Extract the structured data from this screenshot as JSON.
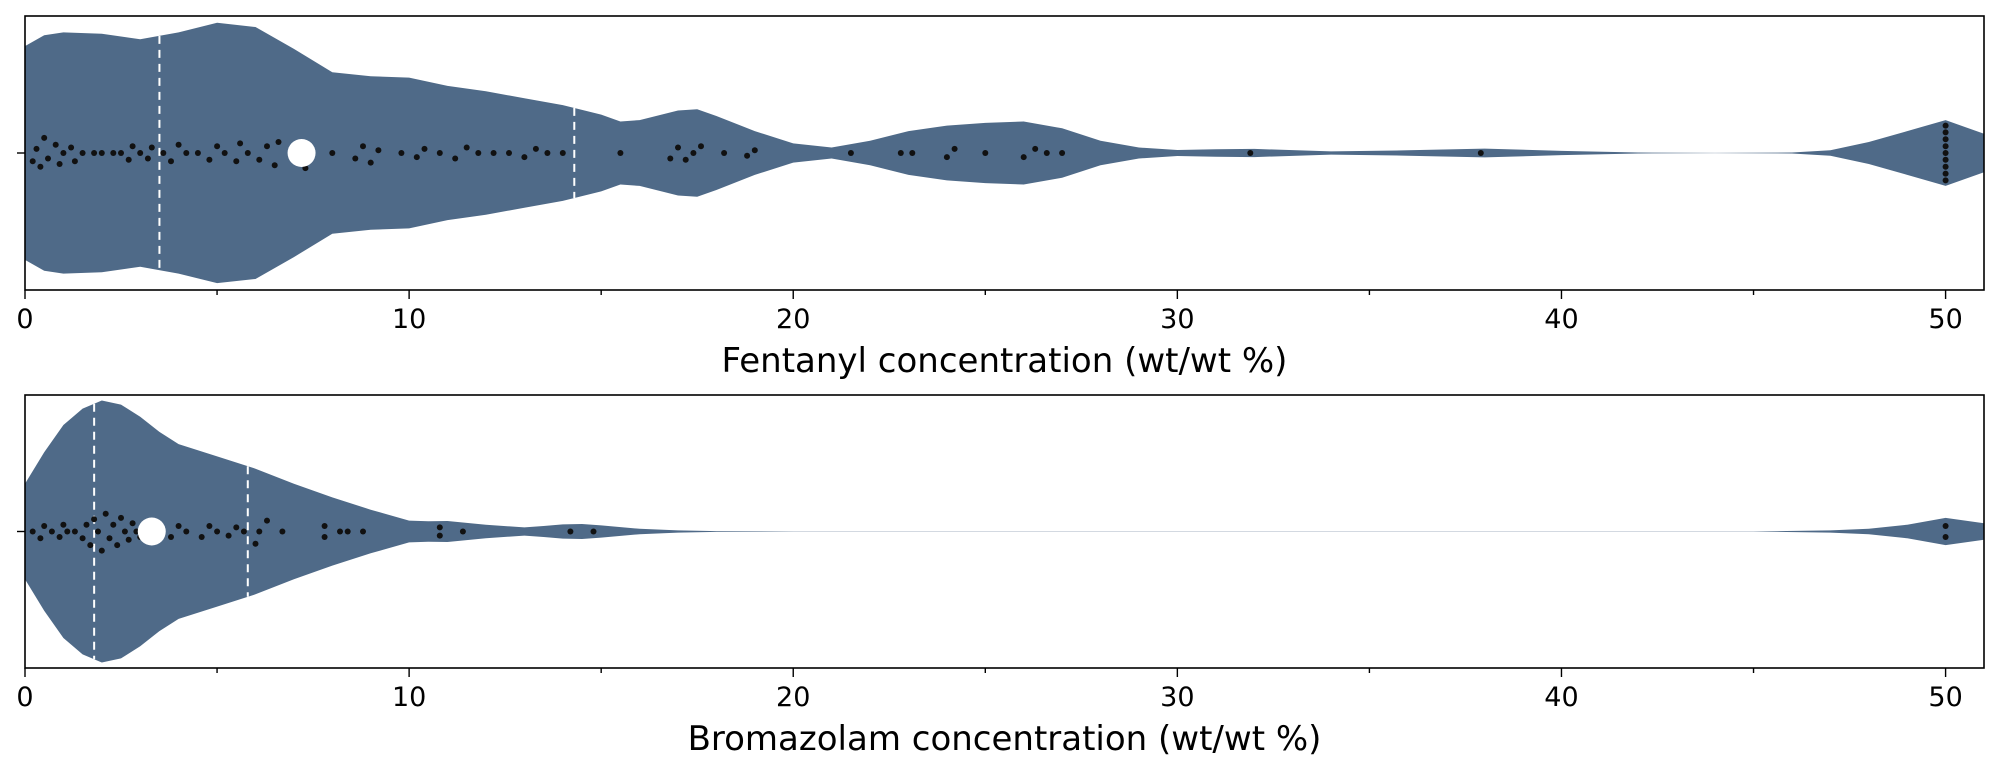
{
  "chart_data": [
    {
      "type": "violin",
      "xlabel": "Fentanyl concentration (wt/wt %)",
      "xlim": [
        0,
        51
      ],
      "xticks": [
        0,
        10,
        20,
        30,
        40,
        50
      ],
      "minor_ticks": [
        5,
        15,
        25,
        35,
        45
      ],
      "color": "#4f6a88",
      "quartiles": [
        3.5,
        14.3
      ],
      "median": 7.2,
      "density": [
        [
          0,
          0.78
        ],
        [
          0.5,
          0.86
        ],
        [
          1,
          0.88
        ],
        [
          2,
          0.87
        ],
        [
          3,
          0.83
        ],
        [
          4,
          0.88
        ],
        [
          5,
          0.95
        ],
        [
          6,
          0.92
        ],
        [
          7,
          0.76
        ],
        [
          8,
          0.59
        ],
        [
          9,
          0.56
        ],
        [
          10,
          0.55
        ],
        [
          11,
          0.49
        ],
        [
          12,
          0.45
        ],
        [
          13,
          0.4
        ],
        [
          14,
          0.35
        ],
        [
          15,
          0.28
        ],
        [
          15.5,
          0.23
        ],
        [
          16,
          0.24
        ],
        [
          17,
          0.31
        ],
        [
          17.5,
          0.32
        ],
        [
          18,
          0.27
        ],
        [
          19,
          0.16
        ],
        [
          20,
          0.07
        ],
        [
          21,
          0.04
        ],
        [
          22,
          0.09
        ],
        [
          23,
          0.16
        ],
        [
          24,
          0.2
        ],
        [
          25,
          0.22
        ],
        [
          26,
          0.23
        ],
        [
          27,
          0.18
        ],
        [
          28,
          0.09
        ],
        [
          29,
          0.04
        ],
        [
          30,
          0.022
        ],
        [
          31,
          0.028
        ],
        [
          32,
          0.03
        ],
        [
          34,
          0.012
        ],
        [
          36,
          0.02
        ],
        [
          38,
          0.032
        ],
        [
          40,
          0.015
        ],
        [
          42,
          0.004
        ],
        [
          44,
          0.001
        ],
        [
          46,
          0.004
        ],
        [
          47,
          0.02
        ],
        [
          48,
          0.08
        ],
        [
          49,
          0.16
        ],
        [
          50,
          0.24
        ],
        [
          51,
          0.14
        ]
      ],
      "points": [
        [
          0.2,
          0.06
        ],
        [
          0.3,
          -0.03
        ],
        [
          0.4,
          0.1
        ],
        [
          0.5,
          -0.11
        ],
        [
          0.6,
          0.04
        ],
        [
          0.8,
          -0.06
        ],
        [
          0.9,
          0.08
        ],
        [
          1.0,
          0.0
        ],
        [
          1.2,
          -0.04
        ],
        [
          1.3,
          0.06
        ],
        [
          1.5,
          0.0
        ],
        [
          1.8,
          0.0
        ],
        [
          2.0,
          0.0
        ],
        [
          2.3,
          0.0
        ],
        [
          2.5,
          0.0
        ],
        [
          2.7,
          0.05
        ],
        [
          2.8,
          -0.05
        ],
        [
          3.0,
          0.0
        ],
        [
          3.2,
          0.04
        ],
        [
          3.3,
          -0.04
        ],
        [
          3.6,
          0.0
        ],
        [
          3.8,
          0.06
        ],
        [
          4.0,
          -0.06
        ],
        [
          4.2,
          0.0
        ],
        [
          4.5,
          0.0
        ],
        [
          4.8,
          0.05
        ],
        [
          5.0,
          -0.05
        ],
        [
          5.2,
          0.0
        ],
        [
          5.5,
          0.06
        ],
        [
          5.6,
          -0.07
        ],
        [
          5.8,
          0.0
        ],
        [
          6.1,
          0.05
        ],
        [
          6.3,
          -0.05
        ],
        [
          6.5,
          0.09
        ],
        [
          6.6,
          -0.08
        ],
        [
          7.0,
          0.0
        ],
        [
          7.3,
          0.11
        ],
        [
          8.0,
          0.0
        ],
        [
          8.6,
          0.04
        ],
        [
          8.8,
          -0.05
        ],
        [
          9.0,
          0.07
        ],
        [
          9.2,
          -0.02
        ],
        [
          9.8,
          0.0
        ],
        [
          10.2,
          0.03
        ],
        [
          10.4,
          -0.03
        ],
        [
          10.8,
          0.0
        ],
        [
          11.2,
          0.04
        ],
        [
          11.5,
          -0.04
        ],
        [
          11.8,
          0.0
        ],
        [
          12.2,
          0.0
        ],
        [
          12.6,
          0.0
        ],
        [
          13.0,
          0.03
        ],
        [
          13.3,
          -0.03
        ],
        [
          13.6,
          0.0
        ],
        [
          14.0,
          0.0
        ],
        [
          15.5,
          0.0
        ],
        [
          16.8,
          0.04
        ],
        [
          17.0,
          -0.04
        ],
        [
          17.2,
          0.05
        ],
        [
          17.4,
          0.0
        ],
        [
          17.6,
          -0.05
        ],
        [
          18.2,
          0.0
        ],
        [
          18.8,
          0.02
        ],
        [
          19.0,
          -0.02
        ],
        [
          21.5,
          0.0
        ],
        [
          22.8,
          0.0
        ],
        [
          23.1,
          0.0
        ],
        [
          24.0,
          0.03
        ],
        [
          24.2,
          -0.03
        ],
        [
          25.0,
          0.0
        ],
        [
          26.0,
          0.03
        ],
        [
          26.3,
          -0.03
        ],
        [
          26.6,
          0.0
        ],
        [
          27.0,
          0.0
        ],
        [
          31.9,
          0.0
        ],
        [
          37.9,
          0.0
        ],
        [
          50.0,
          -0.2
        ],
        [
          50.0,
          -0.15
        ],
        [
          50.0,
          -0.1
        ],
        [
          50.0,
          -0.05
        ],
        [
          50.0,
          0.0
        ],
        [
          50.0,
          0.05
        ],
        [
          50.0,
          0.1
        ],
        [
          50.0,
          0.15
        ],
        [
          50.0,
          0.2
        ]
      ]
    },
    {
      "type": "violin",
      "xlabel": "Bromazolam concentration (wt/wt %)",
      "xlim": [
        0,
        51
      ],
      "xticks": [
        0,
        10,
        20,
        30,
        40,
        50
      ],
      "minor_ticks": [
        5,
        15,
        25,
        35,
        45
      ],
      "color": "#4f6a88",
      "quartiles": [
        1.8,
        5.8
      ],
      "median": 3.3,
      "density": [
        [
          0,
          0.35
        ],
        [
          0.5,
          0.58
        ],
        [
          1,
          0.78
        ],
        [
          1.5,
          0.9
        ],
        [
          2,
          0.96
        ],
        [
          2.5,
          0.93
        ],
        [
          3,
          0.84
        ],
        [
          3.5,
          0.73
        ],
        [
          4,
          0.64
        ],
        [
          5,
          0.55
        ],
        [
          6,
          0.46
        ],
        [
          7,
          0.35
        ],
        [
          8,
          0.25
        ],
        [
          9,
          0.16
        ],
        [
          10,
          0.08
        ],
        [
          10.5,
          0.075
        ],
        [
          11,
          0.077
        ],
        [
          12,
          0.05
        ],
        [
          13,
          0.03
        ],
        [
          13.5,
          0.04
        ],
        [
          14,
          0.052
        ],
        [
          14.5,
          0.055
        ],
        [
          15,
          0.045
        ],
        [
          16,
          0.02
        ],
        [
          17,
          0.008
        ],
        [
          18,
          0.003
        ],
        [
          20,
          0.001
        ],
        [
          30,
          0.0005
        ],
        [
          45,
          0.001
        ],
        [
          47,
          0.008
        ],
        [
          48,
          0.02
        ],
        [
          49,
          0.05
        ],
        [
          50,
          0.1
        ],
        [
          51,
          0.06
        ]
      ],
      "points": [
        [
          0.2,
          0.0
        ],
        [
          0.4,
          0.05
        ],
        [
          0.5,
          -0.04
        ],
        [
          0.7,
          0.0
        ],
        [
          0.9,
          0.04
        ],
        [
          1.0,
          -0.05
        ],
        [
          1.1,
          0.0
        ],
        [
          1.3,
          0.0
        ],
        [
          1.5,
          0.05
        ],
        [
          1.6,
          -0.05
        ],
        [
          1.7,
          0.1
        ],
        [
          1.8,
          -0.09
        ],
        [
          1.9,
          0.0
        ],
        [
          2.0,
          0.14
        ],
        [
          2.1,
          -0.13
        ],
        [
          2.2,
          0.05
        ],
        [
          2.3,
          -0.05
        ],
        [
          2.4,
          0.1
        ],
        [
          2.5,
          -0.1
        ],
        [
          2.6,
          0.0
        ],
        [
          2.7,
          0.06
        ],
        [
          2.8,
          -0.06
        ],
        [
          2.9,
          0.0
        ],
        [
          3.0,
          0.04
        ],
        [
          3.1,
          -0.04
        ],
        [
          3.5,
          0.0
        ],
        [
          3.8,
          0.04
        ],
        [
          4.0,
          -0.04
        ],
        [
          4.2,
          0.0
        ],
        [
          4.6,
          0.04
        ],
        [
          4.8,
          -0.04
        ],
        [
          5.0,
          0.0
        ],
        [
          5.3,
          0.03
        ],
        [
          5.5,
          -0.03
        ],
        [
          5.7,
          0.0
        ],
        [
          6.0,
          0.09
        ],
        [
          6.1,
          0.0
        ],
        [
          6.3,
          -0.08
        ],
        [
          6.7,
          0.0
        ],
        [
          7.8,
          0.04
        ],
        [
          7.8,
          -0.04
        ],
        [
          8.2,
          0.0
        ],
        [
          8.4,
          0.0
        ],
        [
          8.8,
          0.0
        ],
        [
          10.8,
          0.03
        ],
        [
          10.8,
          -0.03
        ],
        [
          11.4,
          0.0
        ],
        [
          14.2,
          0.0
        ],
        [
          14.8,
          0.0
        ],
        [
          50.0,
          0.04
        ],
        [
          50.0,
          -0.04
        ]
      ]
    }
  ]
}
